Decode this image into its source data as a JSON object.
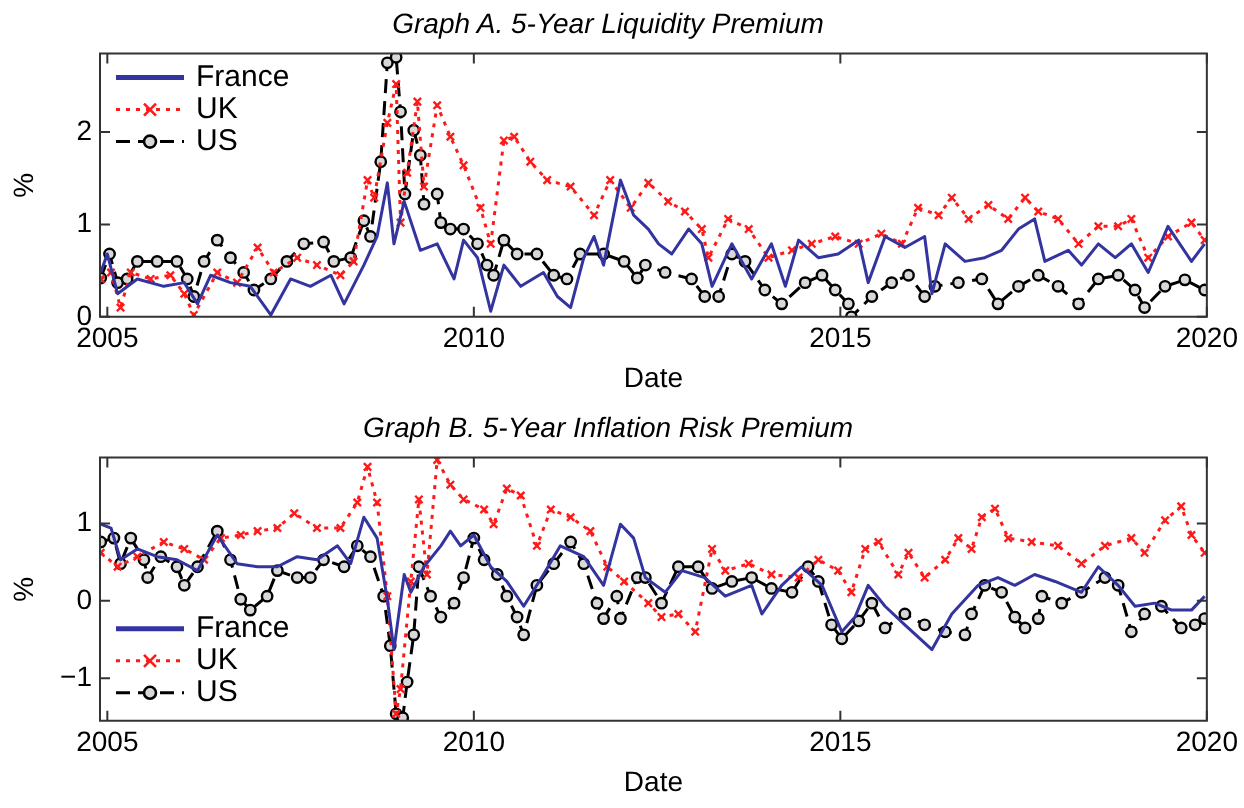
{
  "chart_data": [
    {
      "type": "line",
      "title": "Graph A. 5-Year Liquidity Premium",
      "xlabel": "Date",
      "ylabel": "%",
      "xlim": [
        2004.9,
        2020
      ],
      "xticks": [
        2005,
        2010,
        2015,
        2020
      ],
      "ylim": [
        0,
        2.85
      ],
      "yticks": [
        0,
        1,
        2
      ],
      "legend": "top left",
      "series": [
        {
          "name": "France",
          "color": "#3434a0",
          "marker": "none",
          "line_style": "solid",
          "x": [
            2004.91,
            2005.0,
            2005.14,
            2005.41,
            2005.77,
            2006.05,
            2006.23,
            2006.41,
            2006.68,
            2006.95,
            2007.23,
            2007.5,
            2007.77,
            2008.05,
            2008.23,
            2008.5,
            2008.68,
            2008.82,
            2008.91,
            2009.05,
            2009.27,
            2009.5,
            2009.73,
            2009.86,
            2010.05,
            2010.23,
            2010.41,
            2010.64,
            2010.95,
            2011.14,
            2011.32,
            2011.5,
            2011.64,
            2011.77,
            2012.0,
            2012.18,
            2012.38,
            2012.52,
            2012.7,
            2012.93,
            2013.11,
            2013.25,
            2013.52,
            2013.79,
            2014.06,
            2014.25,
            2014.43,
            2014.7,
            2014.97,
            2015.25,
            2015.38,
            2015.61,
            2015.88,
            2016.15,
            2016.25,
            2016.43,
            2016.7,
            2016.97,
            2017.2,
            2017.43,
            2017.65,
            2017.79,
            2018.11,
            2018.29,
            2018.52,
            2018.75,
            2018.97,
            2019.2,
            2019.47,
            2019.79,
            2019.97
          ],
          "values": [
            0.48,
            0.68,
            0.25,
            0.41,
            0.33,
            0.37,
            0.14,
            0.45,
            0.37,
            0.33,
            0.02,
            0.41,
            0.33,
            0.45,
            0.14,
            0.56,
            0.87,
            1.45,
            0.79,
            1.25,
            0.72,
            0.79,
            0.41,
            0.83,
            0.64,
            0.06,
            0.56,
            0.33,
            0.48,
            0.22,
            0.1,
            0.64,
            0.87,
            0.56,
            1.48,
            1.1,
            0.95,
            0.79,
            0.68,
            0.95,
            0.79,
            0.33,
            0.79,
            0.41,
            0.79,
            0.33,
            0.83,
            0.64,
            0.68,
            0.83,
            0.37,
            0.87,
            0.75,
            0.87,
            0.25,
            0.79,
            0.6,
            0.64,
            0.72,
            0.95,
            1.06,
            0.6,
            0.72,
            0.56,
            0.79,
            0.64,
            0.79,
            0.48,
            0.98,
            0.6,
            0.79
          ]
        },
        {
          "name": "UK",
          "color": "#ff1a1a",
          "marker": "cross",
          "line_style": "dotted",
          "x": [
            2004.91,
            2005.05,
            2005.18,
            2005.32,
            2005.59,
            2005.86,
            2006.05,
            2006.18,
            2006.5,
            2006.77,
            2007.05,
            2007.27,
            2007.59,
            2007.86,
            2008.18,
            2008.36,
            2008.55,
            2008.64,
            2008.82,
            2008.94,
            2009.0,
            2009.09,
            2009.23,
            2009.32,
            2009.5,
            2009.68,
            2009.86,
            2010.09,
            2010.23,
            2010.41,
            2010.55,
            2010.77,
            2011.0,
            2011.32,
            2011.64,
            2011.86,
            2012.14,
            2012.38,
            2012.65,
            2012.88,
            2013.11,
            2013.2,
            2013.47,
            2013.75,
            2014.02,
            2014.34,
            2014.61,
            2014.93,
            2015.25,
            2015.56,
            2015.84,
            2016.06,
            2016.34,
            2016.52,
            2016.75,
            2017.02,
            2017.29,
            2017.52,
            2017.7,
            2017.97,
            2018.25,
            2018.52,
            2018.79,
            2018.97,
            2019.2,
            2019.47,
            2019.79,
            2019.97
          ],
          "values": [
            0.41,
            0.48,
            0.1,
            0.48,
            0.41,
            0.45,
            0.25,
            0.02,
            0.48,
            0.37,
            0.75,
            0.48,
            0.64,
            0.56,
            0.45,
            0.6,
            1.48,
            1.29,
            2.1,
            2.52,
            1.02,
            1.56,
            2.33,
            1.41,
            2.29,
            1.95,
            1.64,
            1.18,
            0.79,
            1.91,
            1.95,
            1.68,
            1.48,
            1.41,
            1.1,
            1.48,
            1.18,
            1.45,
            1.25,
            1.14,
            0.95,
            0.64,
            1.06,
            0.95,
            0.64,
            0.72,
            0.79,
            0.87,
            0.79,
            0.9,
            0.79,
            1.18,
            1.1,
            1.29,
            1.06,
            1.21,
            1.06,
            1.29,
            1.14,
            1.06,
            0.79,
            0.98,
            0.98,
            1.06,
            0.64,
            0.87,
            1.02,
            0.83
          ]
        },
        {
          "name": "US",
          "color": "#000000",
          "marker": "circle",
          "line_style": "dashed",
          "x": [
            2004.91,
            2005.03,
            2005.14,
            2005.27,
            2005.41,
            2005.68,
            2005.95,
            2006.09,
            2006.18,
            2006.32,
            2006.5,
            2006.68,
            2006.86,
            2007.0,
            2007.23,
            2007.45,
            2007.68,
            2007.95,
            2008.09,
            2008.32,
            2008.5,
            2008.59,
            2008.73,
            2008.82,
            2008.94,
            2009.0,
            2009.06,
            2009.18,
            2009.27,
            2009.32,
            2009.5,
            2009.55,
            2009.68,
            2009.86,
            2010.05,
            2010.18,
            2010.27,
            2010.41,
            2010.59,
            2010.86,
            2011.09,
            2011.27,
            2011.45,
            2011.77,
            2012.05,
            2012.23,
            2012.34,
            2012.61,
            2012.97,
            2013.15,
            2013.34,
            2013.52,
            2013.7,
            2013.97,
            2014.2,
            2014.52,
            2014.75,
            2014.93,
            2015.11,
            2015.15,
            2015.43,
            2015.7,
            2015.93,
            2016.15,
            2016.29,
            2016.61,
            2016.93,
            2017.15,
            2017.43,
            2017.7,
            2017.97,
            2018.25,
            2018.52,
            2018.79,
            2019.02,
            2019.15,
            2019.43,
            2019.7,
            2019.97
          ],
          "values": [
            0.42,
            0.68,
            0.37,
            0.41,
            0.6,
            0.6,
            0.6,
            0.41,
            0.22,
            0.6,
            0.83,
            0.64,
            0.48,
            0.29,
            0.41,
            0.6,
            0.79,
            0.81,
            0.6,
            0.64,
            1.04,
            0.87,
            1.68,
            2.75,
            2.81,
            2.22,
            1.33,
            2.02,
            1.75,
            1.22,
            1.33,
            1.02,
            0.95,
            0.95,
            0.79,
            0.56,
            0.45,
            0.83,
            0.68,
            0.68,
            0.45,
            0.41,
            0.68,
            0.68,
            0.6,
            0.42,
            0.56,
            0.48,
            0.41,
            0.22,
            0.22,
            0.68,
            0.6,
            0.29,
            0.14,
            0.37,
            0.45,
            0.29,
            0.14,
            0,
            0.22,
            0.37,
            0.45,
            0.22,
            0.33,
            0.37,
            0.41,
            0.14,
            0.33,
            0.45,
            0.33,
            0.14,
            0.41,
            0.45,
            0.29,
            0.1,
            0.33,
            0.4,
            0.29
          ]
        }
      ]
    },
    {
      "type": "line",
      "title": "Graph B. 5-Year Inflation Risk Premium",
      "xlabel": "Date",
      "ylabel": "%",
      "xlim": [
        2004.9,
        2020
      ],
      "xticks": [
        2005,
        2010,
        2015,
        2020
      ],
      "ylim": [
        -1.55,
        1.85
      ],
      "yticks": [
        {
          "value": -1,
          "label": "−1"
        },
        0,
        1
      ],
      "legend": "bottom left",
      "series": [
        {
          "name": "France",
          "color": "#3434a0",
          "marker": "none",
          "line_style": "solid",
          "x": [
            2004.91,
            2005.05,
            2005.18,
            2005.41,
            2005.68,
            2005.95,
            2006.23,
            2006.5,
            2006.77,
            2007.05,
            2007.32,
            2007.59,
            2007.86,
            2008.14,
            2008.32,
            2008.5,
            2008.68,
            2008.82,
            2008.91,
            2009.05,
            2009.14,
            2009.32,
            2009.55,
            2009.68,
            2009.82,
            2010.0,
            2010.23,
            2010.45,
            2010.68,
            2010.95,
            2011.18,
            2011.5,
            2011.77,
            2012.0,
            2012.18,
            2012.34,
            2012.61,
            2012.84,
            2013.15,
            2013.43,
            2013.79,
            2013.93,
            2014.2,
            2014.47,
            2014.75,
            2015.02,
            2015.2,
            2015.38,
            2015.61,
            2015.88,
            2016.25,
            2016.52,
            2016.88,
            2017.15,
            2017.38,
            2017.65,
            2017.93,
            2018.29,
            2018.52,
            2018.79,
            2019.02,
            2019.29,
            2019.52,
            2019.79,
            2019.97
          ],
          "values": [
            0.99,
            0.94,
            0.53,
            0.67,
            0.57,
            0.53,
            0.39,
            0.85,
            0.48,
            0.44,
            0.44,
            0.57,
            0.53,
            0.71,
            0.48,
            1.08,
            0.81,
            0.02,
            -0.63,
            0.34,
            0.11,
            0.44,
            0.71,
            0.9,
            0.71,
            0.85,
            0.44,
            0.25,
            -0.07,
            0.34,
            0.71,
            0.57,
            0.2,
            0.99,
            0.81,
            0.3,
            0.11,
            0.39,
            0.3,
            0.06,
            0.2,
            -0.17,
            0.2,
            0.44,
            0.2,
            -0.4,
            -0.21,
            0.2,
            -0.07,
            -0.31,
            -0.63,
            -0.17,
            0.2,
            0.3,
            0.2,
            0.34,
            0.25,
            0.11,
            0.44,
            0.2,
            -0.07,
            -0.03,
            -0.12,
            -0.12,
            0.06
          ]
        },
        {
          "name": "UK",
          "color": "#ff1a1a",
          "marker": "cross",
          "line_style": "dotted",
          "x": [
            2004.91,
            2005.14,
            2005.41,
            2005.77,
            2006.05,
            2006.32,
            2006.55,
            2006.82,
            2007.05,
            2007.32,
            2007.55,
            2007.86,
            2008.18,
            2008.41,
            2008.55,
            2008.68,
            2008.82,
            2008.94,
            2009.0,
            2009.14,
            2009.25,
            2009.36,
            2009.5,
            2009.68,
            2009.86,
            2010.14,
            2010.27,
            2010.45,
            2010.64,
            2010.86,
            2011.05,
            2011.32,
            2011.59,
            2011.82,
            2012.05,
            2012.38,
            2012.56,
            2012.79,
            2013.02,
            2013.25,
            2013.43,
            2013.75,
            2014.06,
            2014.43,
            2014.7,
            2014.97,
            2015.15,
            2015.34,
            2015.52,
            2015.79,
            2015.93,
            2016.15,
            2016.43,
            2016.61,
            2016.79,
            2016.93,
            2017.11,
            2017.29,
            2017.61,
            2017.97,
            2018.29,
            2018.61,
            2018.97,
            2019.15,
            2019.43,
            2019.65,
            2019.79,
            2019.97
          ],
          "values": [
            0.62,
            0.44,
            0.57,
            0.76,
            0.67,
            0.53,
            0.81,
            0.85,
            0.9,
            0.94,
            1.13,
            0.94,
            0.94,
            1.27,
            1.73,
            1.27,
            0.06,
            -1.46,
            -1.14,
            0.25,
            1.31,
            0.34,
            1.82,
            1.5,
            1.31,
            1.18,
            0.99,
            1.45,
            1.36,
            0.71,
            1.18,
            1.08,
            0.9,
            0.44,
            0.25,
            -0.03,
            -0.21,
            -0.17,
            -0.4,
            0.67,
            0.39,
            0.48,
            0.34,
            0.3,
            0.53,
            0.39,
            0.11,
            0.67,
            0.76,
            0.34,
            0.62,
            0.3,
            0.53,
            0.81,
            0.67,
            1.08,
            1.19,
            0.81,
            0.76,
            0.71,
            0.48,
            0.71,
            0.81,
            0.62,
            1.04,
            1.22,
            0.85,
            0.62
          ]
        },
        {
          "name": "US",
          "color": "#000000",
          "marker": "circle",
          "line_style": "dashed",
          "x": [
            2004.91,
            2005.09,
            2005.18,
            2005.32,
            2005.5,
            2005.55,
            2005.73,
            2005.95,
            2006.05,
            2006.23,
            2006.5,
            2006.68,
            2006.82,
            2006.95,
            2007.18,
            2007.32,
            2007.59,
            2007.77,
            2007.95,
            2008.23,
            2008.41,
            2008.59,
            2008.77,
            2008.86,
            2008.94,
            2009.03,
            2009.09,
            2009.18,
            2009.25,
            2009.41,
            2009.55,
            2009.73,
            2009.86,
            2010.0,
            2010.14,
            2010.32,
            2010.45,
            2010.59,
            2010.68,
            2010.86,
            2011.09,
            2011.32,
            2011.5,
            2011.68,
            2011.77,
            2011.95,
            2012.0,
            2012.23,
            2012.34,
            2012.56,
            2012.79,
            2013.06,
            2013.25,
            2013.52,
            2013.79,
            2014.06,
            2014.34,
            2014.56,
            2014.7,
            2014.88,
            2015.02,
            2015.25,
            2015.43,
            2015.61,
            2015.88,
            2016.15,
            2016.43,
            2016.7,
            2016.79,
            2016.97,
            2017.2,
            2017.38,
            2017.52,
            2017.7,
            2017.75,
            2018.02,
            2018.29,
            2018.61,
            2018.79,
            2018.97,
            2019.15,
            2019.38,
            2019.65,
            2019.84,
            2019.97
          ],
          "values": [
            0.76,
            0.81,
            0.48,
            0.81,
            0.53,
            0.3,
            0.57,
            0.44,
            0.2,
            0.44,
            0.9,
            0.53,
            0.02,
            -0.12,
            0.06,
            0.39,
            0.3,
            0.3,
            0.53,
            0.44,
            0.71,
            0.57,
            0.06,
            -0.58,
            -1.46,
            -1.51,
            -1.05,
            -0.44,
            0.44,
            0.06,
            -0.21,
            -0.03,
            0.3,
            0.81,
            0.53,
            0.34,
            0.06,
            -0.21,
            -0.44,
            0.2,
            0.48,
            0.76,
            0.48,
            -0.03,
            -0.23,
            0.06,
            -0.23,
            0.3,
            0.3,
            -0.03,
            0.44,
            0.44,
            0.16,
            0.25,
            0.3,
            0.16,
            0.11,
            0.44,
            0.25,
            -0.31,
            -0.49,
            -0.26,
            -0.03,
            -0.35,
            -0.17,
            -0.31,
            -0.4,
            -0.44,
            -0.17,
            0.2,
            0.11,
            -0.21,
            -0.35,
            -0.23,
            0.06,
            -0.03,
            0.11,
            0.3,
            0.2,
            -0.4,
            -0.17,
            -0.07,
            -0.35,
            -0.31,
            -0.23
          ]
        }
      ]
    }
  ]
}
